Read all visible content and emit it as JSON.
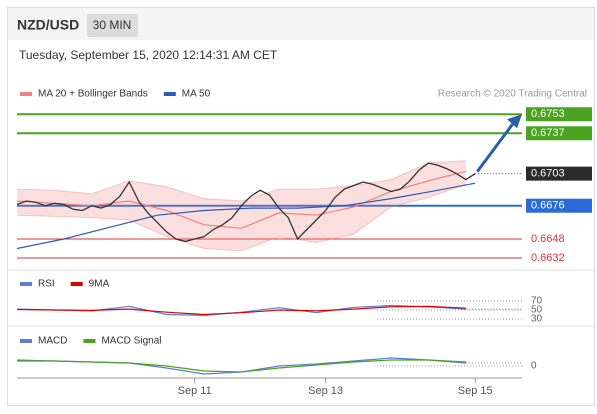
{
  "header": {
    "symbol": "NZD/USD",
    "interval": "30 MIN",
    "timestamp": "Tuesday, September 15, 2020 12:14:31 AM CET",
    "credit": "Research © 2020 Trading Central"
  },
  "chart_data": [
    {
      "type": "line",
      "color": "#333333",
      "x": [
        0,
        1,
        2,
        3,
        4,
        5,
        6,
        7,
        8,
        9,
        10,
        11,
        12,
        13,
        14,
        15,
        16,
        17,
        18,
        19,
        20,
        21,
        22,
        23,
        24,
        25,
        26,
        27,
        28,
        29,
        30,
        31,
        32,
        33,
        34,
        35,
        36,
        37,
        38,
        39,
        40,
        41,
        42,
        43,
        44,
        45,
        46,
        47,
        48,
        49
      ],
      "values": [
        0.6677,
        0.668,
        0.6679,
        0.6676,
        0.6678,
        0.6677,
        0.6673,
        0.6672,
        0.6676,
        0.6674,
        0.6677,
        0.6684,
        0.6696,
        0.668,
        0.667,
        0.6662,
        0.6654,
        0.6648,
        0.6646,
        0.6648,
        0.665,
        0.6656,
        0.666,
        0.6666,
        0.6676,
        0.6684,
        0.6689,
        0.6685,
        0.6674,
        0.6666,
        0.6648,
        0.6656,
        0.6664,
        0.6672,
        0.6683,
        0.669,
        0.6693,
        0.6696,
        0.6694,
        0.6691,
        0.6688,
        0.669,
        0.6697,
        0.6706,
        0.6712,
        0.671,
        0.6707,
        0.6703,
        0.6698,
        0.6703
      ],
      "xlim": [
        0,
        54
      ],
      "ylim": [
        0.66261,
        0.6765
      ],
      "xticks": [
        {
          "value": 19,
          "label": "Sep 11"
        },
        {
          "value": 33,
          "label": "Sep 13"
        },
        {
          "value": 49,
          "label": "Sep 15"
        }
      ],
      "series": [
        {
          "name": "MA 20 + Bollinger Bands",
          "color": "#f08080",
          "x": [
            0,
            4,
            8,
            12,
            16,
            20,
            24,
            28,
            32,
            36,
            40,
            44,
            48
          ],
          "values": [
            0.668,
            0.6678,
            0.6676,
            0.668,
            0.6672,
            0.666,
            0.6657,
            0.667,
            0.6668,
            0.6675,
            0.6688,
            0.6697,
            0.6705
          ],
          "upper": [
            0.669,
            0.6689,
            0.6686,
            0.6697,
            0.6692,
            0.6682,
            0.668,
            0.669,
            0.669,
            0.6693,
            0.6698,
            0.6712,
            0.6714
          ],
          "lower": [
            0.6668,
            0.6667,
            0.6666,
            0.6664,
            0.665,
            0.664,
            0.6638,
            0.665,
            0.6645,
            0.6652,
            0.6675,
            0.6683,
            0.6694
          ]
        },
        {
          "name": "MA 50",
          "color": "#2a5cb8",
          "x": [
            0,
            5,
            10,
            15,
            20,
            25,
            30,
            35,
            40,
            45,
            49
          ],
          "values": [
            0.664,
            0.6648,
            0.6658,
            0.6668,
            0.6672,
            0.6674,
            0.6674,
            0.6676,
            0.6682,
            0.6689,
            0.6695
          ]
        }
      ],
      "levels": [
        {
          "value": 0.6753,
          "color": "#4aa31e",
          "filled": true
        },
        {
          "value": 0.6737,
          "color": "#4aa31e",
          "filled": true
        },
        {
          "value": 0.6676,
          "color": "#2a6ad8",
          "filled": true
        },
        {
          "value": 0.6648,
          "color": "#e03030",
          "filled": false
        },
        {
          "value": 0.6632,
          "color": "#e03030",
          "filled": false
        }
      ]
    },
    {
      "type": "line",
      "xlim": [
        0,
        54
      ],
      "ylim": [
        21,
        90
      ],
      "yticks": [
        70,
        50,
        30
      ],
      "series": [
        {
          "name": "RSI",
          "color": "#5b7fd6",
          "x": [
            0,
            4,
            8,
            12,
            16,
            20,
            24,
            28,
            32,
            36,
            40,
            44,
            48
          ],
          "values": [
            52,
            50,
            48,
            58,
            40,
            38,
            45,
            55,
            44,
            56,
            60,
            57,
            52
          ]
        },
        {
          "name": "9MA",
          "color": "#e00000",
          "x": [
            0,
            4,
            8,
            12,
            16,
            20,
            24,
            28,
            32,
            36,
            40,
            44,
            48
          ],
          "values": [
            51,
            50,
            49,
            52,
            45,
            40,
            44,
            50,
            48,
            52,
            57,
            58,
            54
          ]
        }
      ]
    },
    {
      "type": "line",
      "xlim": [
        0,
        54
      ],
      "ylim": [
        -12,
        16
      ],
      "yticks": [
        0
      ],
      "series": [
        {
          "name": "MACD",
          "color": "#5b7fd6",
          "x": [
            0,
            4,
            8,
            12,
            16,
            20,
            24,
            28,
            32,
            36,
            40,
            44,
            48
          ],
          "values": [
            6,
            5,
            4,
            3,
            -2,
            -8,
            -6,
            0,
            2,
            5,
            8,
            6,
            3
          ]
        },
        {
          "name": "MACD Signal",
          "color": "#4aa31e",
          "x": [
            0,
            4,
            8,
            12,
            16,
            20,
            24,
            28,
            32,
            36,
            40,
            44,
            48
          ],
          "values": [
            5,
            5,
            4,
            3,
            0,
            -5,
            -6,
            -2,
            1,
            4,
            6,
            6,
            4
          ]
        }
      ]
    }
  ]
}
